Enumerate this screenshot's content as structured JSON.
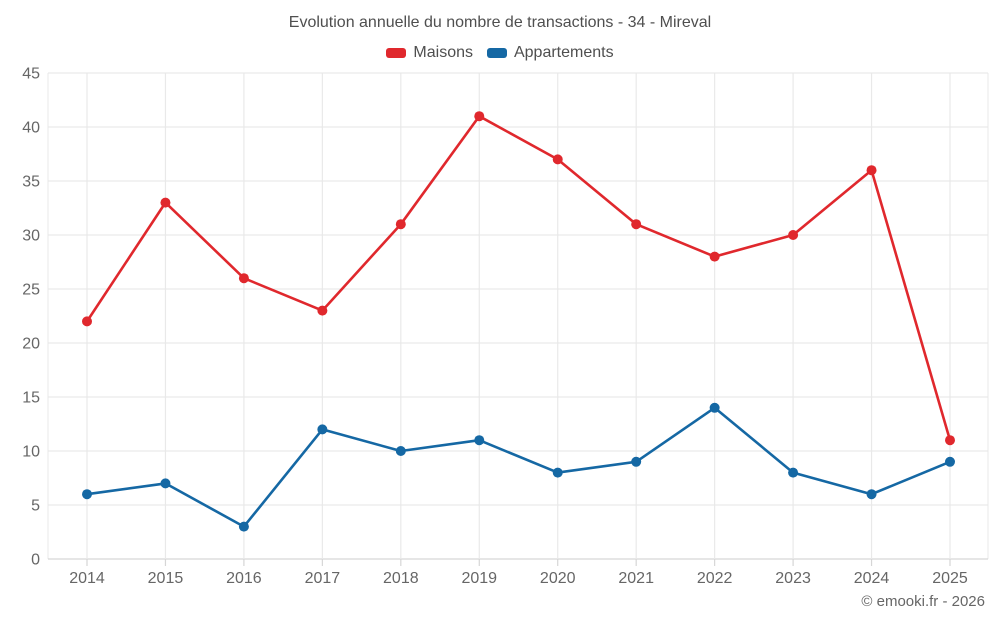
{
  "chart": {
    "title": "Evolution annuelle du nombre de transactions - 34 - Mireval",
    "footer": "© emooki.fr - 2026"
  },
  "chart_data": {
    "type": "line",
    "title": "Evolution annuelle du nombre de transactions - 34 - Mireval",
    "categories": [
      "2014",
      "2015",
      "2016",
      "2017",
      "2018",
      "2019",
      "2020",
      "2021",
      "2022",
      "2023",
      "2024",
      "2025"
    ],
    "series": [
      {
        "name": "Maisons",
        "color": "#e0282d",
        "values": [
          22,
          33,
          26,
          23,
          31,
          41,
          37,
          31,
          28,
          30,
          36,
          11
        ]
      },
      {
        "name": "Appartements",
        "color": "#1568a4",
        "values": [
          6,
          7,
          3,
          12,
          10,
          11,
          8,
          9,
          14,
          8,
          6,
          9
        ]
      }
    ],
    "xlabel": "",
    "ylabel": "",
    "ylim": [
      0,
      45
    ],
    "yticks": [
      0,
      5,
      10,
      15,
      20,
      25,
      30,
      35,
      40,
      45
    ],
    "grid": true,
    "legend_position": "top",
    "colors": {
      "grid_line": "#e9e9e9",
      "axis_line": "#d6d6d6",
      "tick_label": "#666666",
      "title_text": "#4f4f4f"
    }
  }
}
